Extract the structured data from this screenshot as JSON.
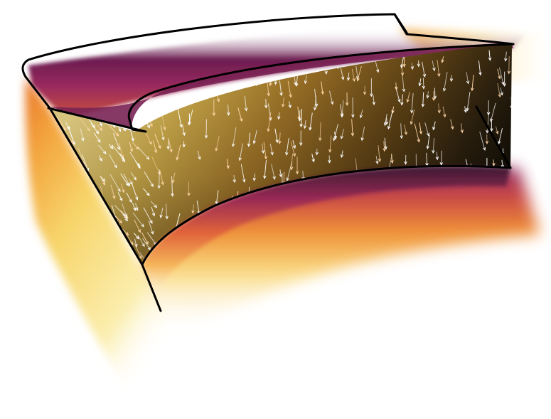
{
  "scene": {
    "subject": "3d-curved-shell-slab",
    "colors": {
      "background": "#ffffff",
      "outline": "#000000",
      "slab_dark": "#16120a",
      "slab_mid": "#6b4a16",
      "slab_light": "#c9a84a",
      "slab_pale": "#e8d486",
      "magenta": "#8c1f5a",
      "purple": "#5b1a49",
      "red": "#c8403c",
      "orange": "#ef8a2c",
      "yellow": "#f7d56b",
      "cream": "#fdf5cc",
      "arrow_white": "#ffffff",
      "arrow_peach": "#ffd7a8"
    },
    "vector_field": {
      "present": true,
      "glyph": "arrow",
      "dominant_direction": "downward"
    }
  }
}
